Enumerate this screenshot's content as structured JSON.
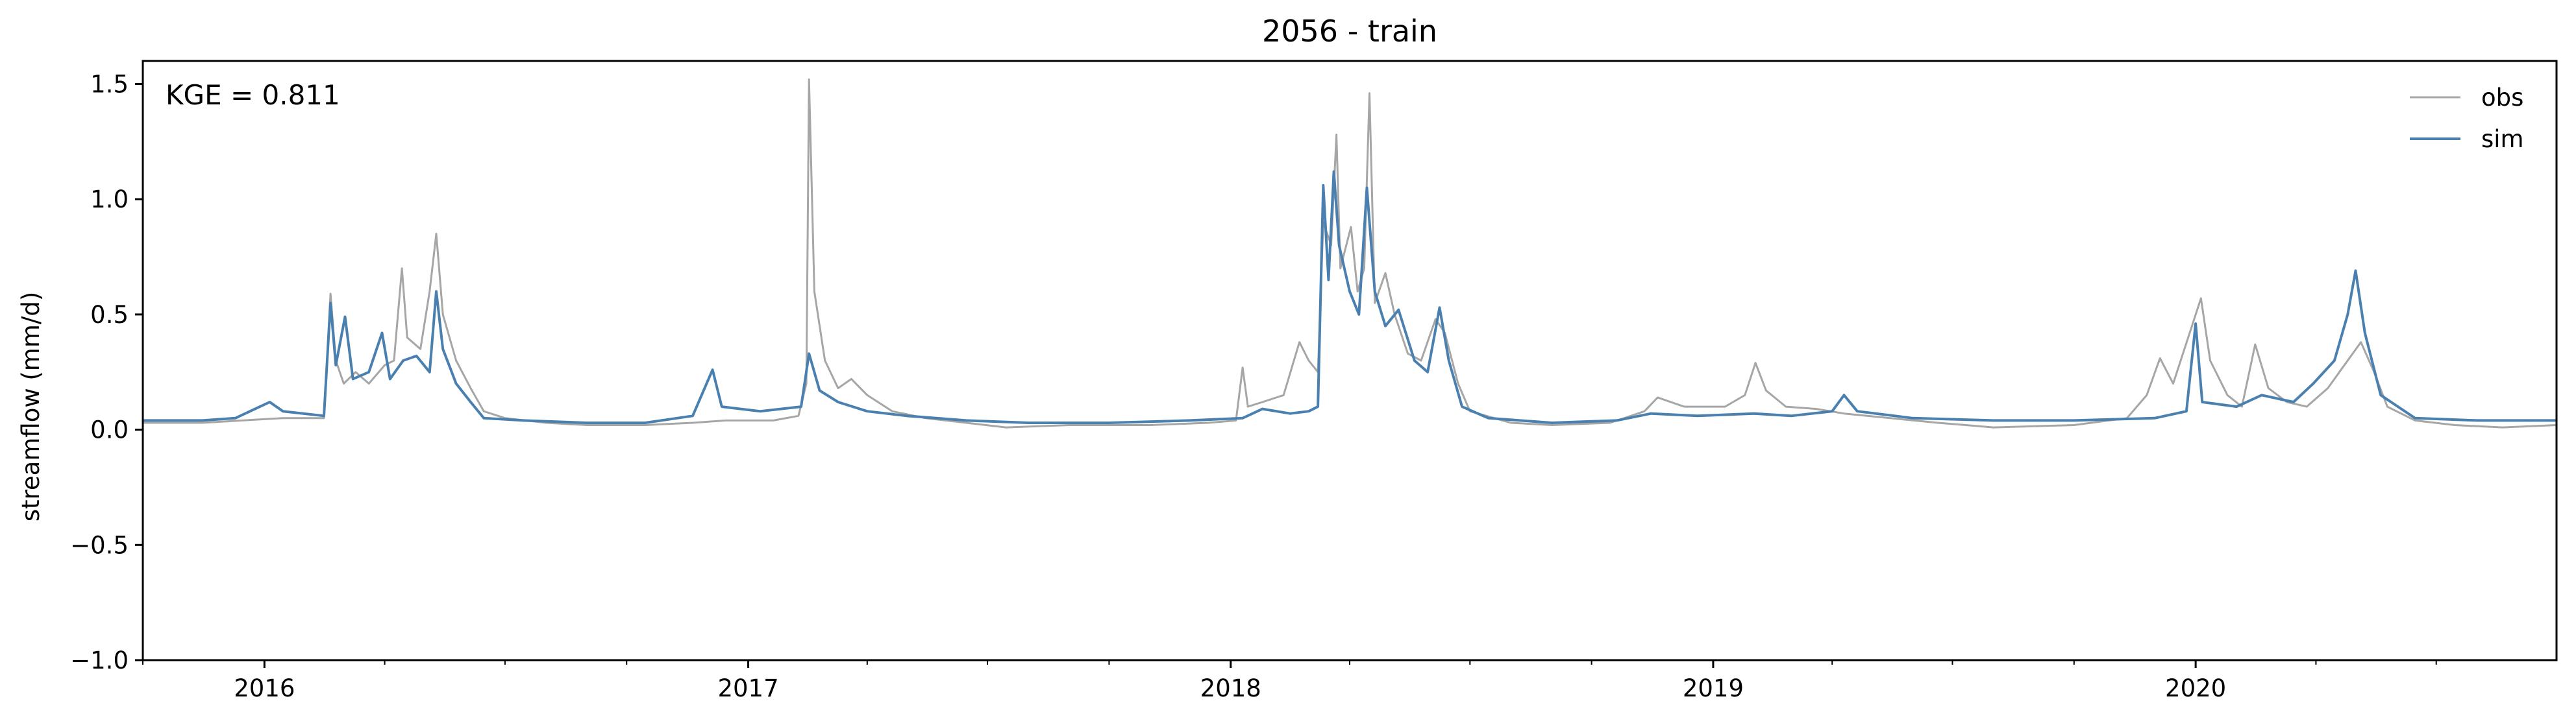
{
  "chart_data": {
    "type": "line",
    "title": "2056 - train",
    "ylabel": "streamflow (mm/d)",
    "xlabel": "",
    "annotation": "KGE = 0.811",
    "ylim": [
      -1.0,
      1.6
    ],
    "xlim": [
      "2015-10-01",
      "2020-09-30"
    ],
    "y_ticks": [
      -1.0,
      -0.5,
      0.0,
      0.5,
      1.0,
      1.5
    ],
    "y_tick_labels": [
      "−1.0",
      "−0.5",
      "0.0",
      "0.5",
      "1.0",
      "1.5"
    ],
    "x_ticks": [
      "2016-01-01",
      "2017-01-01",
      "2018-01-01",
      "2019-01-01",
      "2020-01-01"
    ],
    "x_tick_labels": [
      "2016",
      "2017",
      "2018",
      "2019",
      "2020"
    ],
    "grid": false,
    "legend_position": "top-right",
    "series": [
      {
        "name": "obs",
        "color": "#a6a6a6",
        "points": [
          [
            "2015-10-01",
            0.03
          ],
          [
            "2015-11-15",
            0.03
          ],
          [
            "2015-12-15",
            0.04
          ],
          [
            "2016-01-15",
            0.05
          ],
          [
            "2016-02-15",
            0.05
          ],
          [
            "2016-02-20",
            0.59
          ],
          [
            "2016-02-24",
            0.3
          ],
          [
            "2016-03-01",
            0.2
          ],
          [
            "2016-03-10",
            0.25
          ],
          [
            "2016-03-20",
            0.2
          ],
          [
            "2016-04-01",
            0.28
          ],
          [
            "2016-04-08",
            0.3
          ],
          [
            "2016-04-14",
            0.7
          ],
          [
            "2016-04-18",
            0.4
          ],
          [
            "2016-04-28",
            0.35
          ],
          [
            "2016-05-05",
            0.6
          ],
          [
            "2016-05-10",
            0.85
          ],
          [
            "2016-05-15",
            0.5
          ],
          [
            "2016-05-25",
            0.3
          ],
          [
            "2016-06-05",
            0.18
          ],
          [
            "2016-06-15",
            0.08
          ],
          [
            "2016-07-01",
            0.05
          ],
          [
            "2016-08-01",
            0.03
          ],
          [
            "2016-09-01",
            0.02
          ],
          [
            "2016-10-15",
            0.02
          ],
          [
            "2016-11-20",
            0.03
          ],
          [
            "2016-12-15",
            0.04
          ],
          [
            "2017-01-20",
            0.04
          ],
          [
            "2017-02-08",
            0.06
          ],
          [
            "2017-02-14",
            0.2
          ],
          [
            "2017-02-16",
            1.52
          ],
          [
            "2017-02-20",
            0.6
          ],
          [
            "2017-02-28",
            0.3
          ],
          [
            "2017-03-10",
            0.18
          ],
          [
            "2017-03-20",
            0.22
          ],
          [
            "2017-04-01",
            0.15
          ],
          [
            "2017-04-20",
            0.08
          ],
          [
            "2017-05-15",
            0.05
          ],
          [
            "2017-06-15",
            0.03
          ],
          [
            "2017-07-15",
            0.01
          ],
          [
            "2017-09-01",
            0.02
          ],
          [
            "2017-11-01",
            0.02
          ],
          [
            "2017-12-15",
            0.03
          ],
          [
            "2018-01-05",
            0.04
          ],
          [
            "2018-01-10",
            0.27
          ],
          [
            "2018-01-14",
            0.1
          ],
          [
            "2018-01-25",
            0.12
          ],
          [
            "2018-02-10",
            0.15
          ],
          [
            "2018-02-22",
            0.38
          ],
          [
            "2018-03-01",
            0.3
          ],
          [
            "2018-03-08",
            0.25
          ],
          [
            "2018-03-12",
            0.9
          ],
          [
            "2018-03-18",
            0.8
          ],
          [
            "2018-03-22",
            1.28
          ],
          [
            "2018-03-25",
            0.7
          ],
          [
            "2018-04-02",
            0.88
          ],
          [
            "2018-04-07",
            0.6
          ],
          [
            "2018-04-12",
            0.7
          ],
          [
            "2018-04-16",
            1.46
          ],
          [
            "2018-04-20",
            0.55
          ],
          [
            "2018-04-28",
            0.68
          ],
          [
            "2018-05-05",
            0.5
          ],
          [
            "2018-05-15",
            0.33
          ],
          [
            "2018-05-25",
            0.3
          ],
          [
            "2018-06-05",
            0.48
          ],
          [
            "2018-06-12",
            0.42
          ],
          [
            "2018-06-22",
            0.2
          ],
          [
            "2018-07-01",
            0.08
          ],
          [
            "2018-08-01",
            0.03
          ],
          [
            "2018-09-01",
            0.02
          ],
          [
            "2018-10-15",
            0.03
          ],
          [
            "2018-11-10",
            0.08
          ],
          [
            "2018-11-20",
            0.14
          ],
          [
            "2018-12-10",
            0.1
          ],
          [
            "2019-01-10",
            0.1
          ],
          [
            "2019-01-25",
            0.15
          ],
          [
            "2019-02-02",
            0.29
          ],
          [
            "2019-02-10",
            0.17
          ],
          [
            "2019-02-25",
            0.1
          ],
          [
            "2019-03-20",
            0.09
          ],
          [
            "2019-04-10",
            0.07
          ],
          [
            "2019-05-15",
            0.05
          ],
          [
            "2019-06-20",
            0.03
          ],
          [
            "2019-08-01",
            0.01
          ],
          [
            "2019-10-01",
            0.02
          ],
          [
            "2019-11-10",
            0.05
          ],
          [
            "2019-11-25",
            0.15
          ],
          [
            "2019-12-05",
            0.31
          ],
          [
            "2019-12-15",
            0.2
          ],
          [
            "2020-01-05",
            0.57
          ],
          [
            "2020-01-12",
            0.3
          ],
          [
            "2020-01-25",
            0.15
          ],
          [
            "2020-02-05",
            0.1
          ],
          [
            "2020-02-15",
            0.37
          ],
          [
            "2020-02-25",
            0.18
          ],
          [
            "2020-03-10",
            0.12
          ],
          [
            "2020-03-25",
            0.1
          ],
          [
            "2020-04-10",
            0.18
          ],
          [
            "2020-04-25",
            0.3
          ],
          [
            "2020-05-05",
            0.38
          ],
          [
            "2020-05-15",
            0.25
          ],
          [
            "2020-05-25",
            0.1
          ],
          [
            "2020-06-15",
            0.04
          ],
          [
            "2020-07-15",
            0.02
          ],
          [
            "2020-08-20",
            0.01
          ],
          [
            "2020-09-30",
            0.02
          ]
        ]
      },
      {
        "name": "sim",
        "color": "#4a80b0",
        "points": [
          [
            "2015-10-01",
            0.04
          ],
          [
            "2015-11-15",
            0.04
          ],
          [
            "2015-12-10",
            0.05
          ],
          [
            "2016-01-05",
            0.12
          ],
          [
            "2016-01-15",
            0.08
          ],
          [
            "2016-02-15",
            0.06
          ],
          [
            "2016-02-20",
            0.55
          ],
          [
            "2016-02-24",
            0.28
          ],
          [
            "2016-03-02",
            0.49
          ],
          [
            "2016-03-08",
            0.22
          ],
          [
            "2016-03-20",
            0.25
          ],
          [
            "2016-03-30",
            0.42
          ],
          [
            "2016-04-05",
            0.22
          ],
          [
            "2016-04-15",
            0.3
          ],
          [
            "2016-04-25",
            0.32
          ],
          [
            "2016-05-05",
            0.25
          ],
          [
            "2016-05-10",
            0.6
          ],
          [
            "2016-05-15",
            0.35
          ],
          [
            "2016-05-25",
            0.2
          ],
          [
            "2016-06-05",
            0.12
          ],
          [
            "2016-06-15",
            0.05
          ],
          [
            "2016-07-15",
            0.04
          ],
          [
            "2016-09-01",
            0.03
          ],
          [
            "2016-10-15",
            0.03
          ],
          [
            "2016-11-20",
            0.06
          ],
          [
            "2016-12-05",
            0.26
          ],
          [
            "2016-12-12",
            0.1
          ],
          [
            "2017-01-10",
            0.08
          ],
          [
            "2017-02-10",
            0.1
          ],
          [
            "2017-02-16",
            0.33
          ],
          [
            "2017-02-24",
            0.17
          ],
          [
            "2017-03-10",
            0.12
          ],
          [
            "2017-04-01",
            0.08
          ],
          [
            "2017-05-01",
            0.06
          ],
          [
            "2017-06-15",
            0.04
          ],
          [
            "2017-08-01",
            0.03
          ],
          [
            "2017-10-01",
            0.03
          ],
          [
            "2017-12-01",
            0.04
          ],
          [
            "2018-01-10",
            0.05
          ],
          [
            "2018-01-25",
            0.09
          ],
          [
            "2018-02-15",
            0.07
          ],
          [
            "2018-03-01",
            0.08
          ],
          [
            "2018-03-08",
            0.1
          ],
          [
            "2018-03-12",
            1.06
          ],
          [
            "2018-03-16",
            0.65
          ],
          [
            "2018-03-20",
            1.12
          ],
          [
            "2018-03-24",
            0.8
          ],
          [
            "2018-04-01",
            0.6
          ],
          [
            "2018-04-08",
            0.5
          ],
          [
            "2018-04-14",
            1.05
          ],
          [
            "2018-04-20",
            0.6
          ],
          [
            "2018-04-28",
            0.45
          ],
          [
            "2018-05-08",
            0.52
          ],
          [
            "2018-05-20",
            0.3
          ],
          [
            "2018-05-30",
            0.25
          ],
          [
            "2018-06-08",
            0.53
          ],
          [
            "2018-06-15",
            0.3
          ],
          [
            "2018-06-25",
            0.1
          ],
          [
            "2018-07-15",
            0.05
          ],
          [
            "2018-09-01",
            0.03
          ],
          [
            "2018-10-20",
            0.04
          ],
          [
            "2018-11-15",
            0.07
          ],
          [
            "2018-12-20",
            0.06
          ],
          [
            "2019-02-01",
            0.07
          ],
          [
            "2019-03-01",
            0.06
          ],
          [
            "2019-04-01",
            0.08
          ],
          [
            "2019-04-10",
            0.15
          ],
          [
            "2019-04-20",
            0.08
          ],
          [
            "2019-06-01",
            0.05
          ],
          [
            "2019-08-01",
            0.04
          ],
          [
            "2019-10-01",
            0.04
          ],
          [
            "2019-12-01",
            0.05
          ],
          [
            "2019-12-25",
            0.08
          ],
          [
            "2020-01-01",
            0.46
          ],
          [
            "2020-01-06",
            0.12
          ],
          [
            "2020-02-01",
            0.1
          ],
          [
            "2020-02-20",
            0.15
          ],
          [
            "2020-03-15",
            0.12
          ],
          [
            "2020-03-30",
            0.2
          ],
          [
            "2020-04-15",
            0.3
          ],
          [
            "2020-04-25",
            0.5
          ],
          [
            "2020-05-01",
            0.69
          ],
          [
            "2020-05-08",
            0.42
          ],
          [
            "2020-05-20",
            0.15
          ],
          [
            "2020-06-15",
            0.05
          ],
          [
            "2020-08-01",
            0.04
          ],
          [
            "2020-09-30",
            0.04
          ]
        ]
      }
    ]
  }
}
